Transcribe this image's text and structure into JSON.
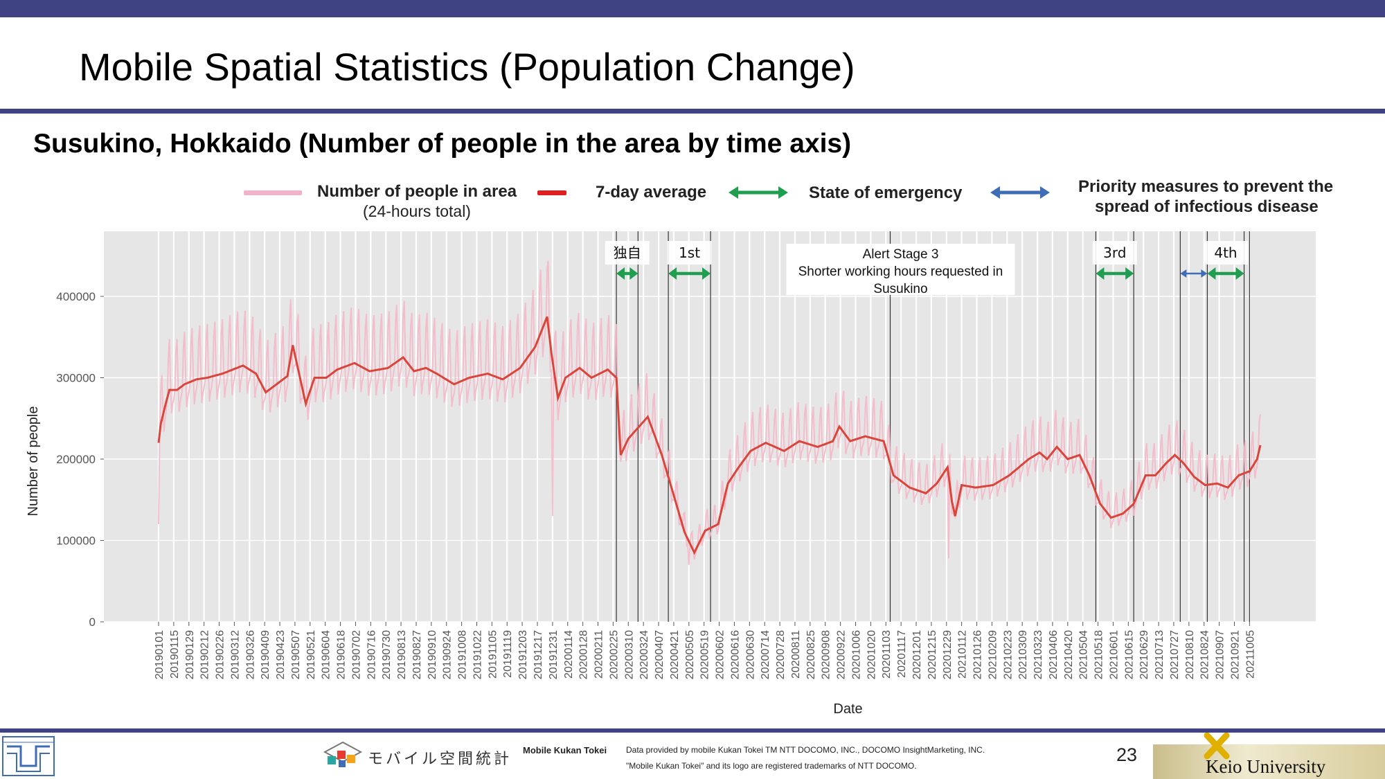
{
  "page": {
    "title": "Mobile Spatial Statistics (Population Change)",
    "subtitle": "Susukino, Hokkaido (Number of people in the area by time axis)",
    "page_number": "23",
    "brand_color": "#3f4283"
  },
  "legend": {
    "daily_label": "Number of people in area",
    "daily_sublabel": "(24-hours total)",
    "avg_label": "7-day average",
    "emergency_label": "State of emergency",
    "priority_label_line1": "Priority measures to prevent the",
    "priority_label_line2": "spread of infectious disease",
    "daily_color": "#f0b3c9",
    "avg_color": "#e02020",
    "emergency_color": "#1e9e4e",
    "priority_color": "#3e6db5"
  },
  "footer": {
    "mkt_logo_text": "モバイル空間統計",
    "mkt_name": "Mobile Kukan Tokei",
    "credit_line1": "Data provided by mobile Kukan Tokei TM NTT DOCOMO, INC., DOCOMO InsightMarketing, INC.",
    "credit_line2": "\"Mobile Kukan Tokei\" and its logo are registered trademarks of NTT DOCOMO.",
    "university": "Keio University"
  },
  "chart_data": {
    "type": "line",
    "xlabel": "Date",
    "ylabel": "Number of people",
    "ylim": [
      0,
      480000
    ],
    "yticks": [
      0,
      100000,
      200000,
      300000,
      400000
    ],
    "xlim": [
      "2019-01-01",
      "2021-10-15"
    ],
    "x_tick_labels": [
      "20190101",
      "20190115",
      "20190129",
      "20190212",
      "20190226",
      "20190312",
      "20190326",
      "20190409",
      "20190423",
      "20190507",
      "20190521",
      "20190604",
      "20190618",
      "20190702",
      "20190716",
      "20190730",
      "20190813",
      "20190827",
      "20190910",
      "20190924",
      "20191008",
      "20191022",
      "20191105",
      "20191119",
      "20191203",
      "20191217",
      "20191231",
      "20200114",
      "20200128",
      "20200211",
      "20200225",
      "20200310",
      "20200324",
      "20200407",
      "20200421",
      "20200505",
      "20200519",
      "20200602",
      "20200616",
      "20200630",
      "20200714",
      "20200728",
      "20200811",
      "20200825",
      "20200908",
      "20200922",
      "20201006",
      "20201020",
      "20201103",
      "20201117",
      "20201201",
      "20201215",
      "20201229",
      "20210112",
      "20210126",
      "20210209",
      "20210223",
      "20210309",
      "20210323",
      "20210406",
      "20210420",
      "20210504",
      "20210518",
      "20210601",
      "20210615",
      "20210629",
      "20210713",
      "20210727",
      "20210810",
      "20210824",
      "20210907",
      "20210921",
      "20211005"
    ],
    "grid": true,
    "legend_position": "top",
    "series": [
      {
        "name": "7-day average",
        "color": "#d9453a",
        "points": [
          [
            "2019-01-01",
            220000
          ],
          [
            "2019-01-03",
            243000
          ],
          [
            "2019-01-07",
            265000
          ],
          [
            "2019-01-11",
            285000
          ],
          [
            "2019-01-18",
            285000
          ],
          [
            "2019-01-25",
            292000
          ],
          [
            "2019-02-05",
            298000
          ],
          [
            "2019-02-15",
            300000
          ],
          [
            "2019-03-01",
            305000
          ],
          [
            "2019-03-20",
            315000
          ],
          [
            "2019-04-01",
            305000
          ],
          [
            "2019-04-10",
            282000
          ],
          [
            "2019-04-20",
            292000
          ],
          [
            "2019-04-30",
            302000
          ],
          [
            "2019-05-05",
            340000
          ],
          [
            "2019-05-10",
            310000
          ],
          [
            "2019-05-17",
            268000
          ],
          [
            "2019-05-25",
            300000
          ],
          [
            "2019-06-05",
            300000
          ],
          [
            "2019-06-15",
            310000
          ],
          [
            "2019-07-01",
            318000
          ],
          [
            "2019-07-15",
            308000
          ],
          [
            "2019-08-01",
            312000
          ],
          [
            "2019-08-15",
            325000
          ],
          [
            "2019-08-25",
            308000
          ],
          [
            "2019-09-05",
            312000
          ],
          [
            "2019-09-15",
            305000
          ],
          [
            "2019-10-01",
            292000
          ],
          [
            "2019-10-15",
            300000
          ],
          [
            "2019-11-01",
            305000
          ],
          [
            "2019-11-15",
            298000
          ],
          [
            "2019-12-01",
            312000
          ],
          [
            "2019-12-15",
            338000
          ],
          [
            "2019-12-26",
            375000
          ],
          [
            "2019-12-30",
            330000
          ],
          [
            "2020-01-05",
            275000
          ],
          [
            "2020-01-12",
            300000
          ],
          [
            "2020-01-25",
            312000
          ],
          [
            "2020-02-05",
            300000
          ],
          [
            "2020-02-20",
            310000
          ],
          [
            "2020-02-28",
            300000
          ],
          [
            "2020-03-03",
            205000
          ],
          [
            "2020-03-10",
            225000
          ],
          [
            "2020-03-20",
            240000
          ],
          [
            "2020-03-28",
            252000
          ],
          [
            "2020-04-10",
            205000
          ],
          [
            "2020-04-20",
            160000
          ],
          [
            "2020-05-01",
            110000
          ],
          [
            "2020-05-10",
            85000
          ],
          [
            "2020-05-20",
            112000
          ],
          [
            "2020-06-01",
            120000
          ],
          [
            "2020-06-10",
            170000
          ],
          [
            "2020-06-20",
            190000
          ],
          [
            "2020-07-01",
            210000
          ],
          [
            "2020-07-15",
            220000
          ],
          [
            "2020-08-01",
            210000
          ],
          [
            "2020-08-15",
            222000
          ],
          [
            "2020-09-01",
            215000
          ],
          [
            "2020-09-15",
            222000
          ],
          [
            "2020-09-21",
            240000
          ],
          [
            "2020-10-01",
            222000
          ],
          [
            "2020-10-15",
            228000
          ],
          [
            "2020-11-01",
            222000
          ],
          [
            "2020-11-10",
            180000
          ],
          [
            "2020-11-25",
            165000
          ],
          [
            "2020-12-10",
            158000
          ],
          [
            "2020-12-20",
            170000
          ],
          [
            "2020-12-30",
            190000
          ],
          [
            "2021-01-03",
            148000
          ],
          [
            "2021-01-06",
            130000
          ],
          [
            "2021-01-12",
            168000
          ],
          [
            "2021-01-25",
            165000
          ],
          [
            "2021-02-10",
            168000
          ],
          [
            "2021-02-25",
            180000
          ],
          [
            "2021-03-15",
            200000
          ],
          [
            "2021-03-25",
            208000
          ],
          [
            "2021-04-01",
            200000
          ],
          [
            "2021-04-10",
            215000
          ],
          [
            "2021-04-20",
            200000
          ],
          [
            "2021-05-01",
            205000
          ],
          [
            "2021-05-10",
            180000
          ],
          [
            "2021-05-20",
            145000
          ],
          [
            "2021-05-30",
            128000
          ],
          [
            "2021-06-10",
            133000
          ],
          [
            "2021-06-20",
            145000
          ],
          [
            "2021-07-01",
            180000
          ],
          [
            "2021-07-10",
            180000
          ],
          [
            "2021-07-20",
            195000
          ],
          [
            "2021-07-28",
            205000
          ],
          [
            "2021-08-05",
            195000
          ],
          [
            "2021-08-15",
            178000
          ],
          [
            "2021-08-25",
            168000
          ],
          [
            "2021-09-05",
            170000
          ],
          [
            "2021-09-15",
            165000
          ],
          [
            "2021-09-25",
            180000
          ],
          [
            "2021-10-05",
            185000
          ],
          [
            "2021-10-12",
            200000
          ],
          [
            "2021-10-15",
            217000
          ]
        ]
      },
      {
        "name": "Number of people in area",
        "sublabel": "(24-hours total)",
        "color": "#f4b8c8",
        "weekly_pattern": "daily values oscillate around the 7-day average with weekly peaks",
        "notable_points": [
          [
            "2019-01-01",
            120000
          ],
          [
            "2019-12-31",
            130000
          ],
          [
            "2020-05-05",
            70000
          ],
          [
            "2020-12-31",
            78000
          ],
          [
            "2021-10-15",
            255000
          ]
        ]
      }
    ],
    "vertical_lines": [
      "2020-02-28",
      "2020-03-19",
      "2020-04-16",
      "2020-05-25",
      "2020-11-07",
      "2021-05-16",
      "2021-06-20",
      "2021-08-02",
      "2021-08-27",
      "2021-09-30",
      "2021-10-05"
    ],
    "periods": [
      {
        "label": "独自",
        "kind": "emergency",
        "start": "2020-02-28",
        "end": "2020-03-19"
      },
      {
        "label": "1st",
        "kind": "emergency",
        "start": "2020-04-16",
        "end": "2020-05-25"
      },
      {
        "label": "3rd",
        "kind": "emergency",
        "start": "2021-05-16",
        "end": "2021-06-20"
      },
      {
        "label": "",
        "kind": "priority",
        "start": "2021-08-02",
        "end": "2021-08-27"
      },
      {
        "label": "4th",
        "kind": "emergency",
        "start": "2021-08-27",
        "end": "2021-09-30"
      }
    ],
    "annotations": [
      {
        "date": "2020-11-07",
        "lines": [
          "Alert Stage 3",
          "Shorter working hours requested in",
          "Susukino"
        ]
      }
    ]
  }
}
